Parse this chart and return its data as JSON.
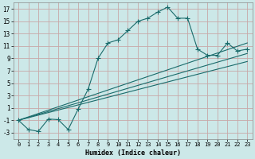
{
  "xlabel": "Humidex (Indice chaleur)",
  "ylabel": "",
  "bg_color": "#cce8e8",
  "grid_color": "#b0d0d0",
  "line_color": "#1a6b6b",
  "xlim": [
    -0.5,
    23.5
  ],
  "ylim": [
    -4,
    18
  ],
  "yticks": [
    -3,
    -1,
    1,
    3,
    5,
    7,
    9,
    11,
    13,
    15,
    17
  ],
  "xticks": [
    0,
    1,
    2,
    3,
    4,
    5,
    6,
    7,
    8,
    9,
    10,
    11,
    12,
    13,
    14,
    15,
    16,
    17,
    18,
    19,
    20,
    21,
    22,
    23
  ],
  "main_series": {
    "x": [
      0,
      1,
      2,
      3,
      4,
      5,
      6,
      7,
      8,
      9,
      10,
      11,
      12,
      13,
      14,
      15,
      16,
      17,
      18,
      19,
      20,
      21,
      22,
      23
    ],
    "y": [
      -1.0,
      -2.5,
      -2.8,
      -0.8,
      -0.9,
      -2.5,
      0.8,
      4.0,
      9.0,
      11.5,
      12.0,
      13.5,
      15.0,
      15.5,
      16.5,
      17.3,
      15.5,
      15.5,
      10.5,
      9.5,
      9.5,
      11.5,
      10.2,
      10.5
    ]
  },
  "straight_lines": [
    {
      "x": [
        0,
        23
      ],
      "y": [
        -1.0,
        11.5
      ]
    },
    {
      "x": [
        0,
        23
      ],
      "y": [
        -1.0,
        9.8
      ]
    },
    {
      "x": [
        0,
        23
      ],
      "y": [
        -1.0,
        8.5
      ]
    }
  ]
}
